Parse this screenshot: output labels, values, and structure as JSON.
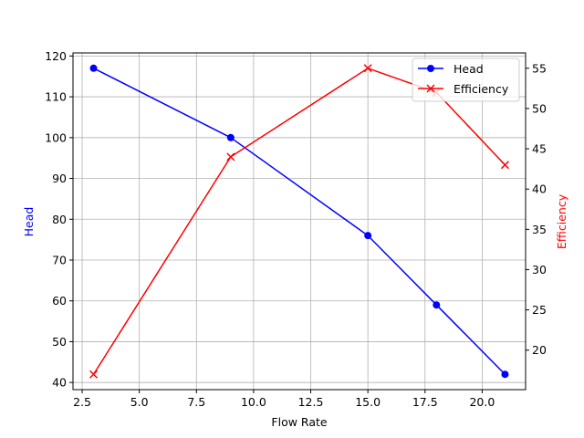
{
  "chart_data": {
    "type": "line",
    "title": "",
    "xlabel": "Flow Rate",
    "ylabel": "Head",
    "y2label": "Efficiency",
    "x": [
      3,
      9,
      15,
      18,
      21
    ],
    "series": [
      {
        "name": "Head",
        "axis": "left",
        "color": "#0000ff",
        "marker": "o",
        "values": [
          117,
          100,
          76,
          59,
          42
        ]
      },
      {
        "name": "Efficiency",
        "axis": "right",
        "color": "#ff0000",
        "marker": "x",
        "values": [
          17,
          44,
          55,
          52,
          43
        ]
      }
    ],
    "xlim": [
      2.1,
      21.9
    ],
    "ylim": [
      38.25,
      120.75
    ],
    "y2lim": [
      15.1,
      56.9
    ],
    "xticks": [
      "2.5",
      "5.0",
      "7.5",
      "10.0",
      "12.5",
      "15.0",
      "17.5",
      "20.0"
    ],
    "yticks": [
      "40",
      "50",
      "60",
      "70",
      "80",
      "90",
      "100",
      "110",
      "120"
    ],
    "y2ticks": [
      "20",
      "25",
      "30",
      "35",
      "40",
      "45",
      "50",
      "55"
    ],
    "grid": true,
    "legend_position": "upper right"
  }
}
